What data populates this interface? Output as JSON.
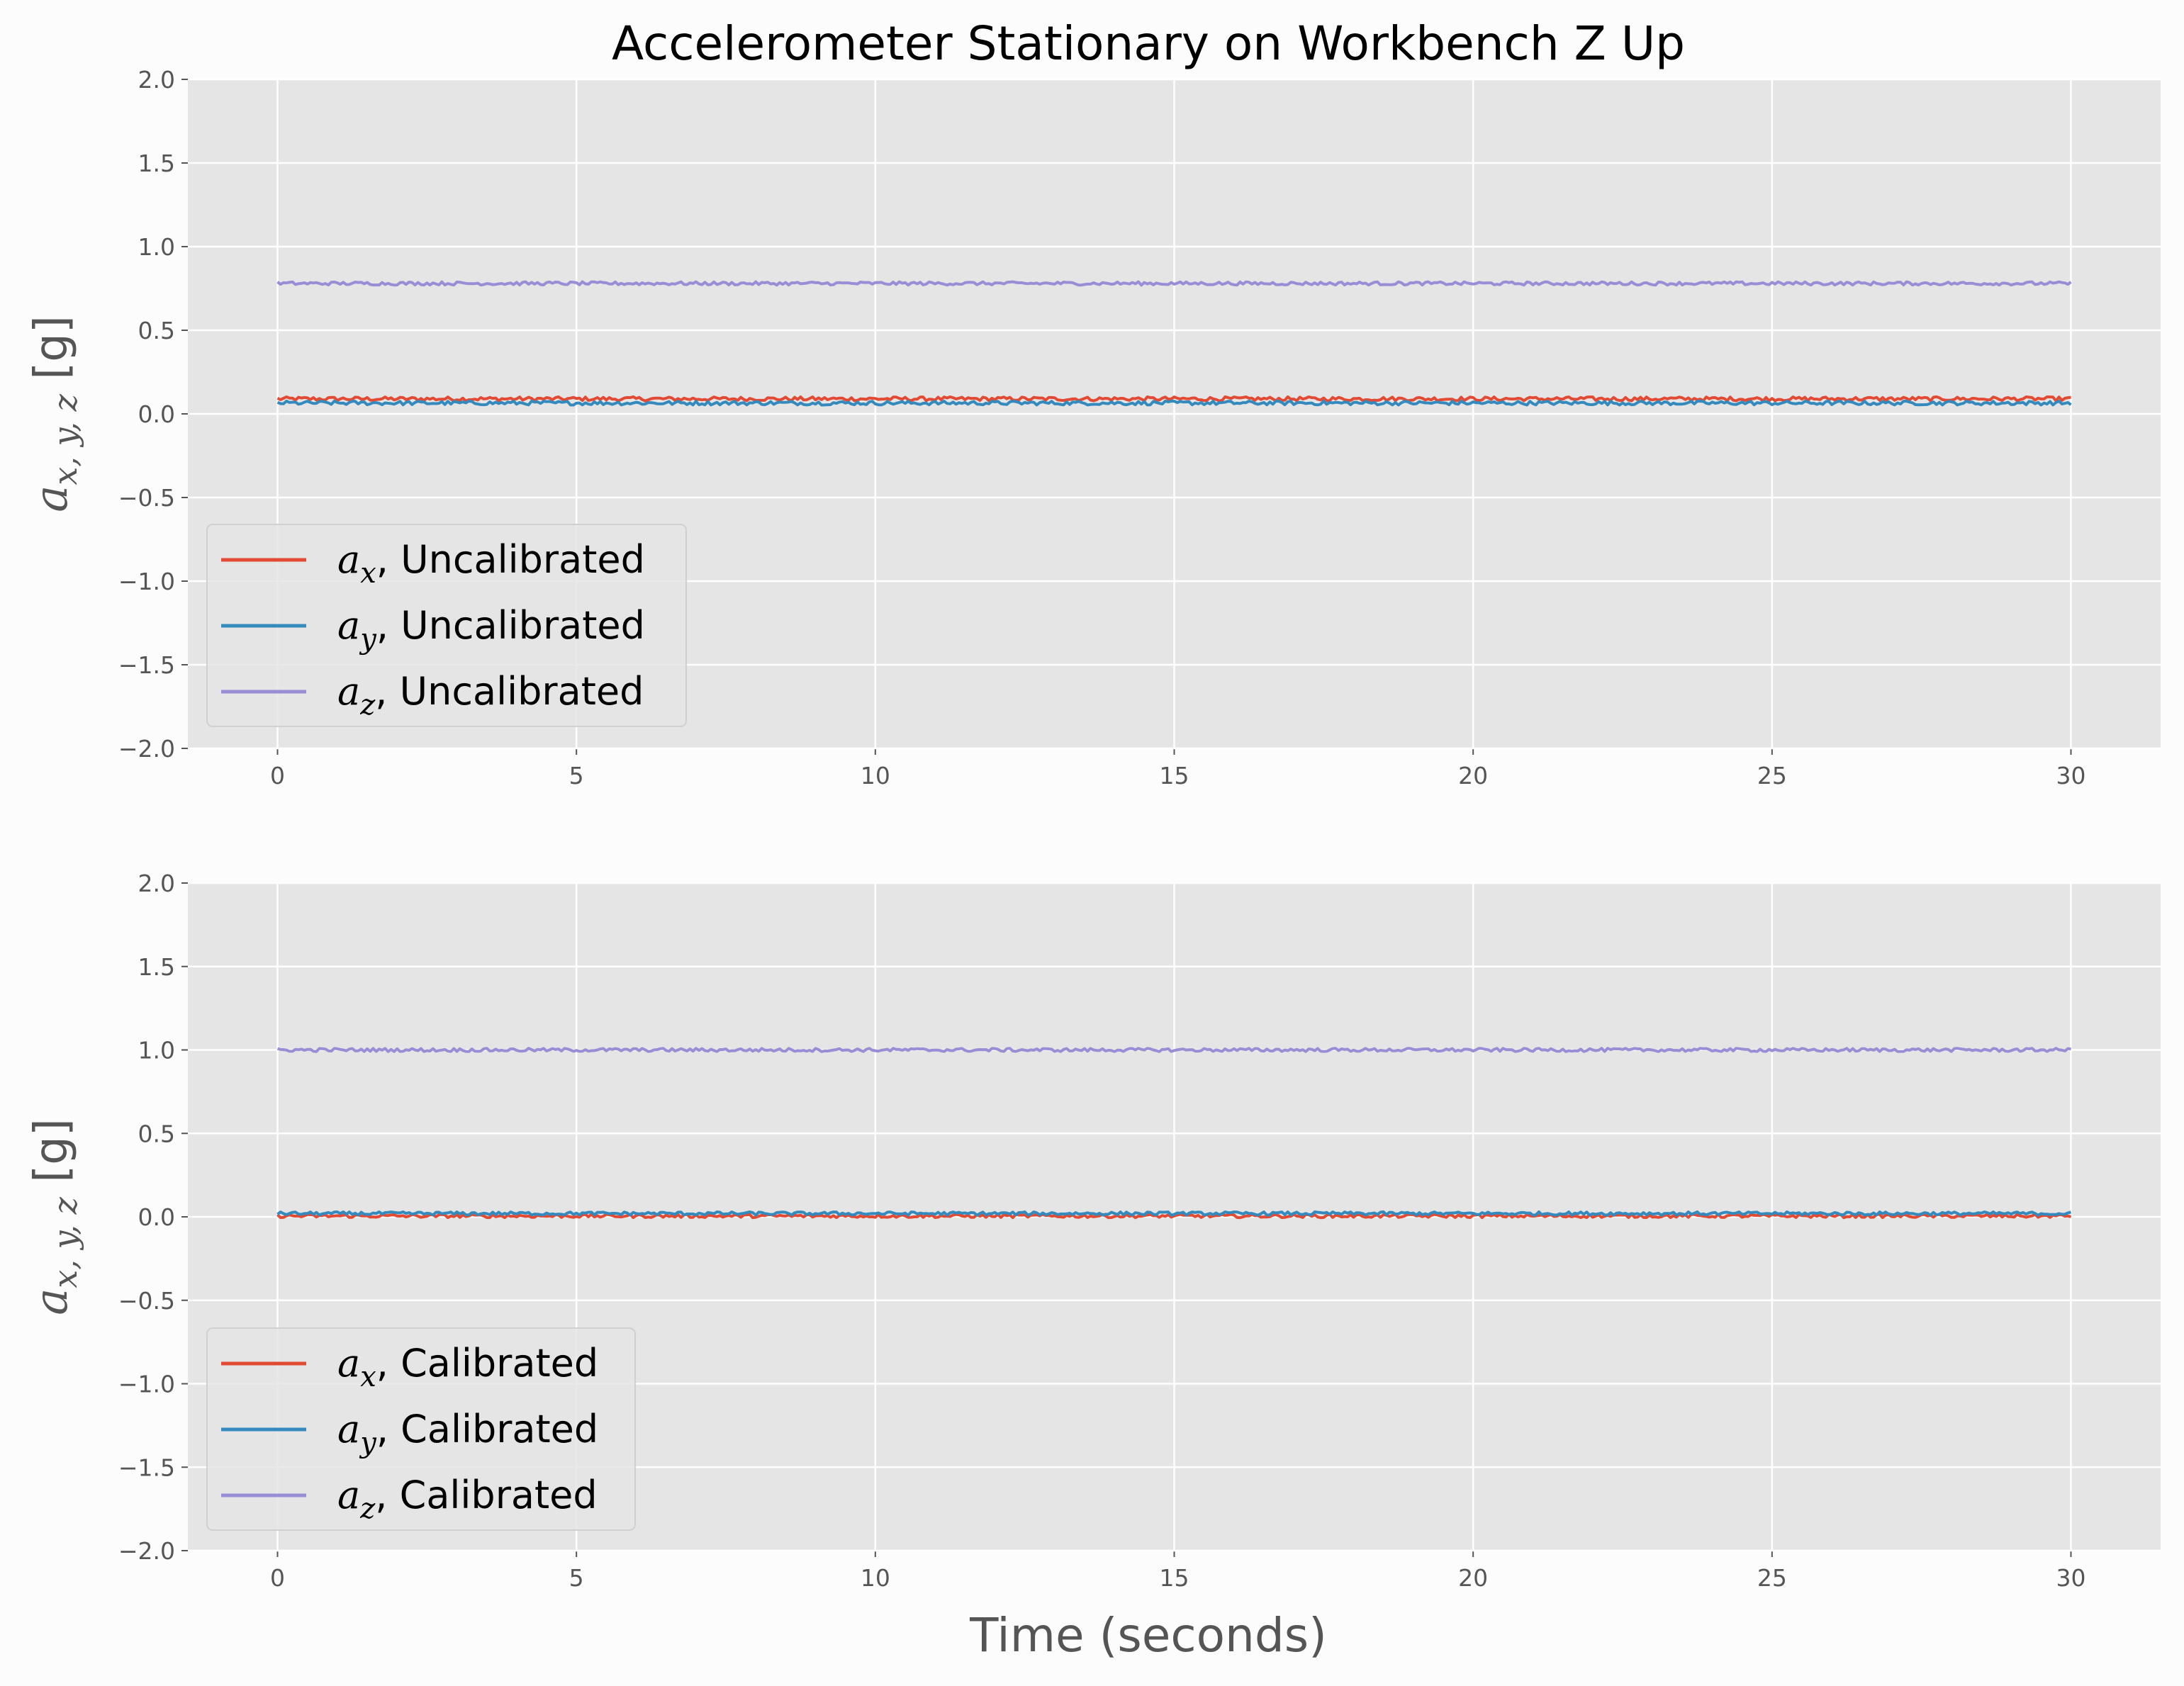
{
  "chart_data": {
    "type": "line",
    "title": "Accelerometer Stationary on Workbench Z Up",
    "xlabel": "Time (seconds)",
    "colors": {
      "ax": "#e24a33",
      "ay": "#348abd",
      "az": "#988ed5",
      "panel_bg": "#e5e5e5",
      "grid": "#ffffff"
    },
    "subplots": [
      {
        "ylabel": {
          "symbol": "a",
          "subscript": "x, y, z",
          "unit": "[g]"
        },
        "xlim": [
          -1.5,
          31.5
        ],
        "ylim": [
          -2.0,
          2.0
        ],
        "xticks": [
          "0",
          "5",
          "10",
          "15",
          "20",
          "25",
          "30"
        ],
        "yticks": [
          "−2.0",
          "−1.5",
          "−1.0",
          "−0.5",
          "0.0",
          "0.5",
          "1.0",
          "1.5",
          "2.0"
        ],
        "legend_position": "lower left",
        "grid": true,
        "series": [
          {
            "key": "ax",
            "symbol": "a",
            "sub": "x",
            "name": ", Uncalibrated",
            "x_range": [
              0,
              30
            ],
            "mean": 0.09,
            "noise": 0.012
          },
          {
            "key": "ay",
            "symbol": "a",
            "sub": "y",
            "name": ", Uncalibrated",
            "x_range": [
              0,
              30
            ],
            "mean": 0.065,
            "noise": 0.012
          },
          {
            "key": "az",
            "symbol": "a",
            "sub": "z",
            "name": ", Uncalibrated",
            "x_range": [
              0,
              30
            ],
            "mean": 0.78,
            "noise": 0.01
          }
        ]
      },
      {
        "ylabel": {
          "symbol": "a",
          "subscript": "x, y, z",
          "unit": "[g]"
        },
        "xlim": [
          -1.5,
          31.5
        ],
        "ylim": [
          -2.0,
          2.0
        ],
        "xticks": [
          "0",
          "5",
          "10",
          "15",
          "20",
          "25",
          "30"
        ],
        "yticks": [
          "−2.0",
          "−1.5",
          "−1.0",
          "−0.5",
          "0.0",
          "0.5",
          "1.0",
          "1.5",
          "2.0"
        ],
        "legend_position": "lower left",
        "grid": true,
        "series": [
          {
            "key": "ax",
            "symbol": "a",
            "sub": "x",
            "name": ", Calibrated",
            "x_range": [
              0,
              30
            ],
            "mean": 0.005,
            "noise": 0.01
          },
          {
            "key": "ay",
            "symbol": "a",
            "sub": "y",
            "name": ", Calibrated",
            "x_range": [
              0,
              30
            ],
            "mean": 0.02,
            "noise": 0.01
          },
          {
            "key": "az",
            "symbol": "a",
            "sub": "z",
            "name": ", Calibrated",
            "x_range": [
              0,
              30
            ],
            "mean": 1.0,
            "noise": 0.01
          }
        ]
      }
    ]
  }
}
